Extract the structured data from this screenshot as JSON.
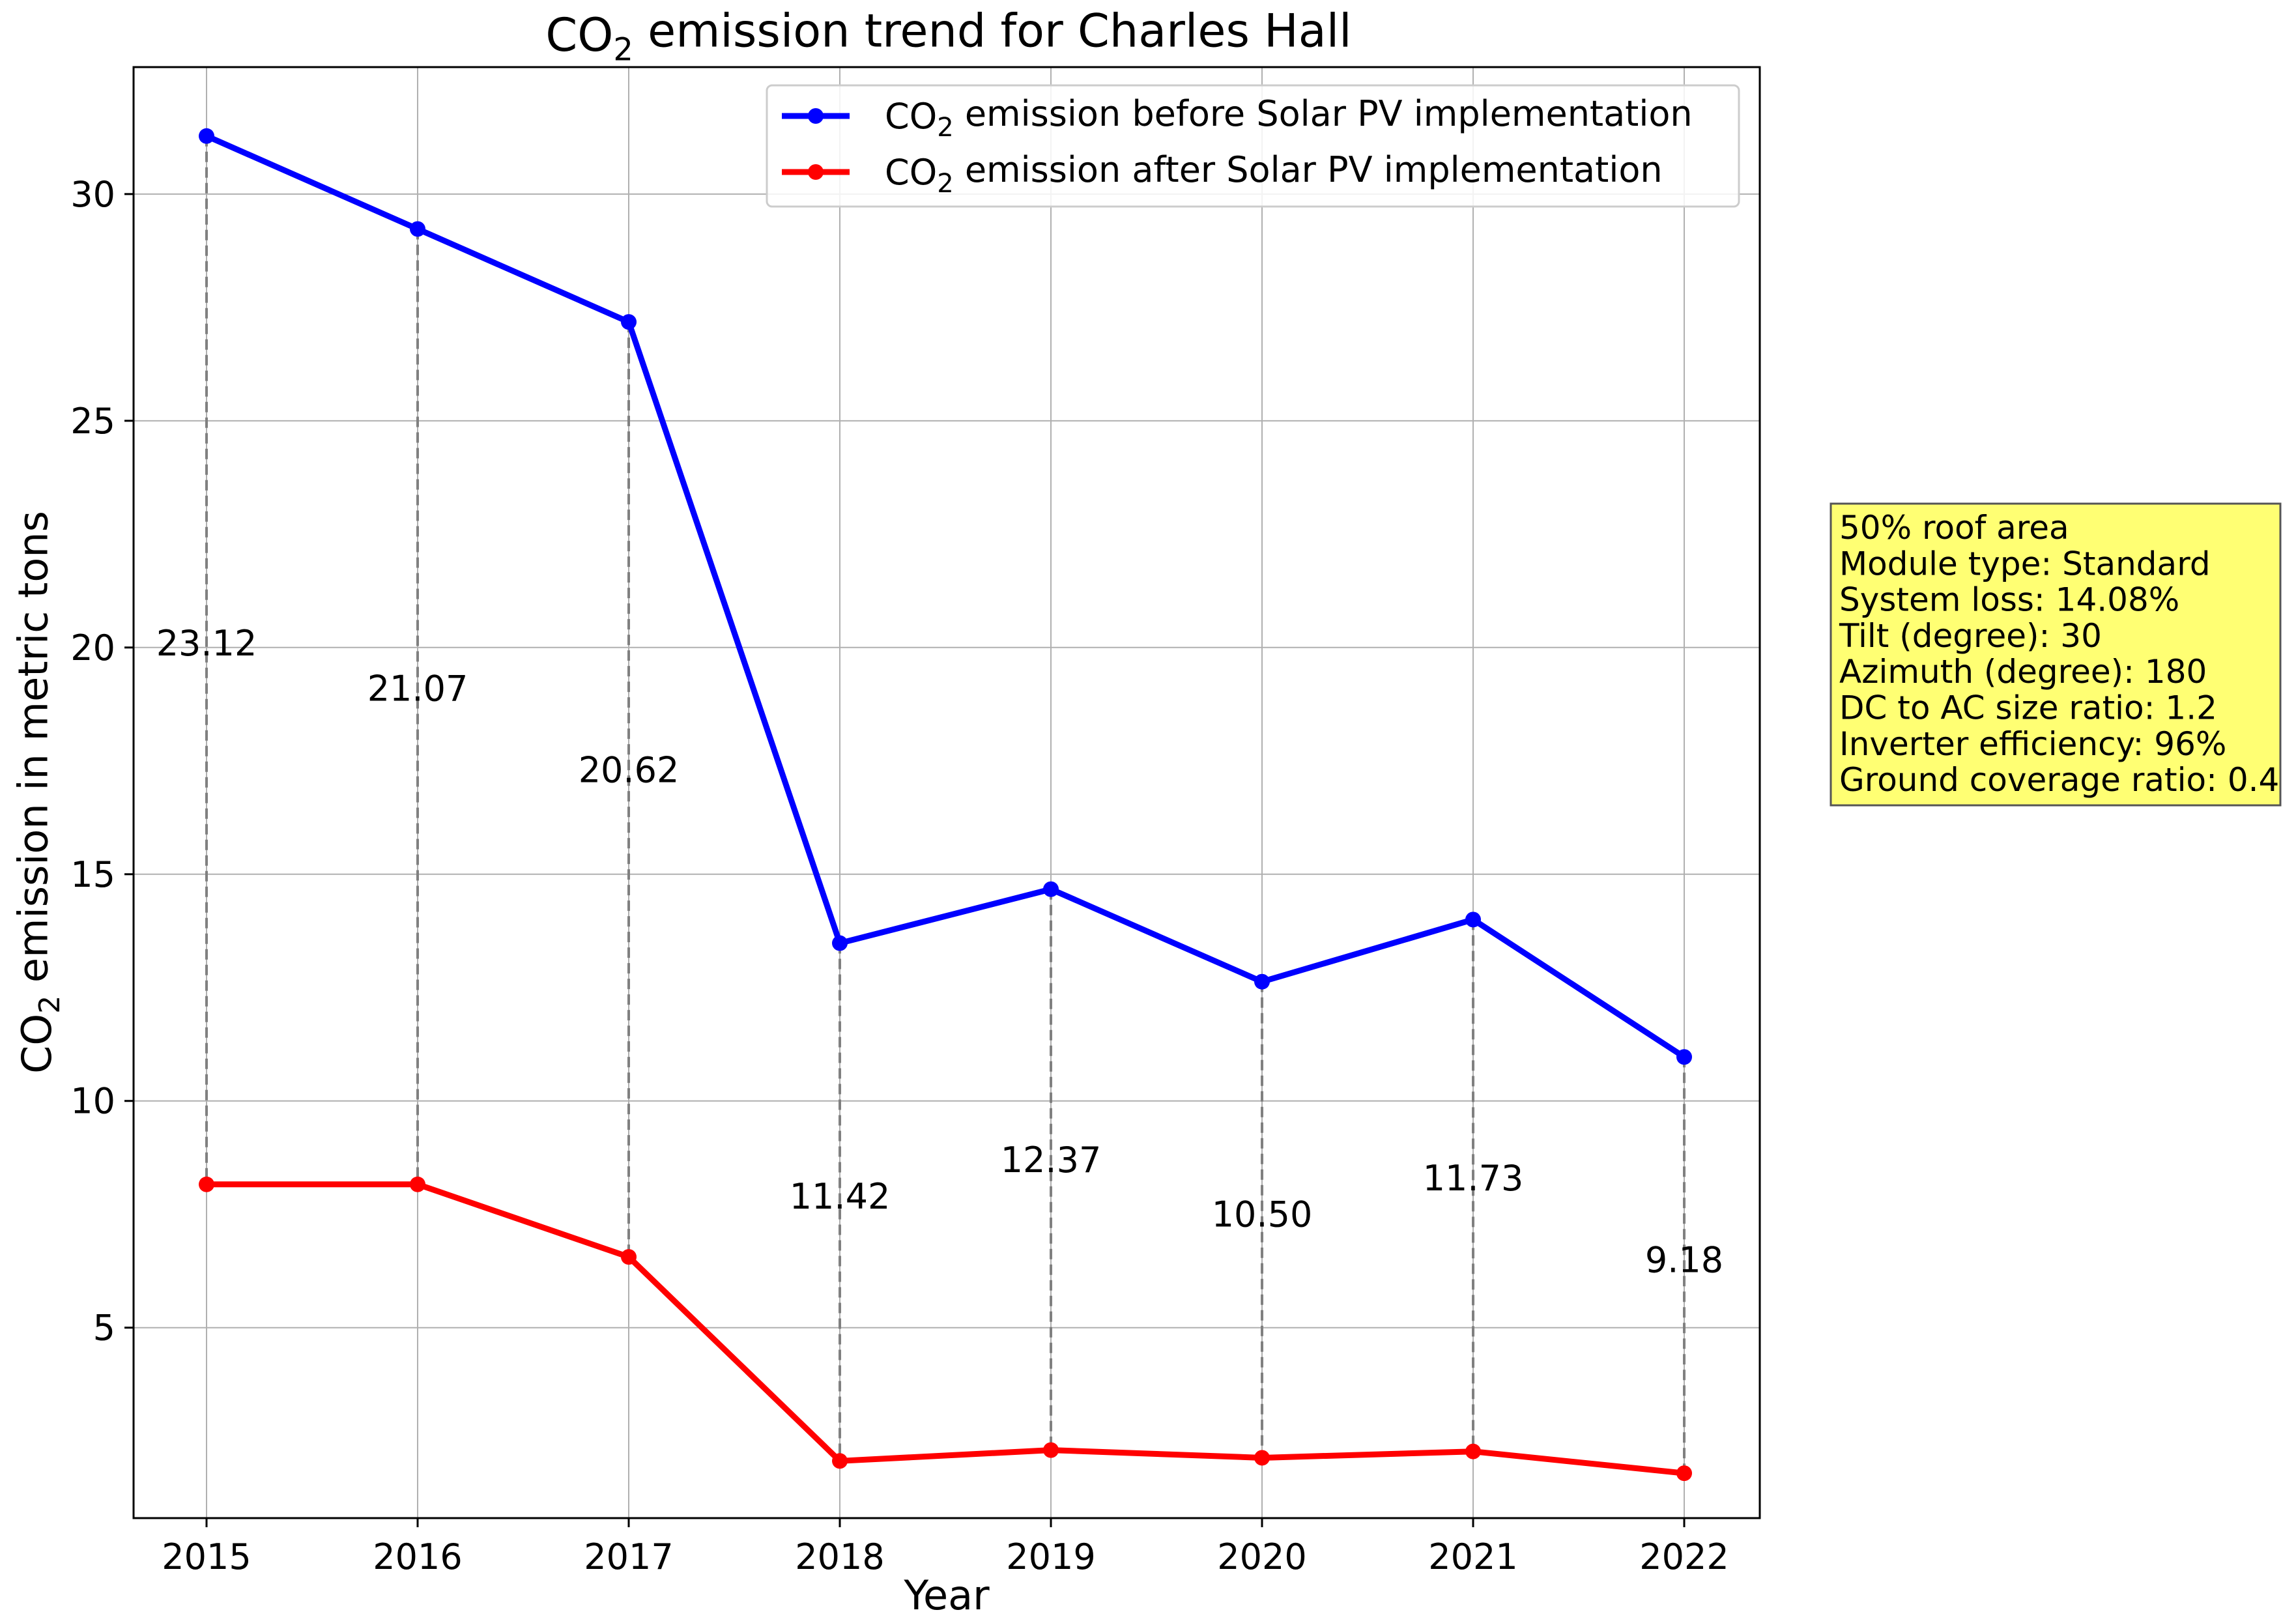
{
  "chart_data": {
    "type": "line",
    "title": {
      "prefix": "CO",
      "subscript": "2",
      "suffix": " emission trend for Charles Hall"
    },
    "xlabel": "Year",
    "ylabel": {
      "prefix": "CO",
      "subscript": "2",
      "suffix": " emission in metric tons"
    },
    "categories": [
      "2015",
      "2016",
      "2017",
      "2018",
      "2019",
      "2020",
      "2021",
      "2022"
    ],
    "ylim": [
      0.8,
      32.8
    ],
    "yticks": [
      5,
      10,
      15,
      20,
      25,
      30
    ],
    "grid": true,
    "legend_position": "top-right",
    "series": [
      {
        "name": "CO2 emission before Solar PV implementation",
        "legend": {
          "prefix": "CO",
          "subscript": "2",
          "suffix": " emission before Solar PV implementation"
        },
        "color": "#0000ff",
        "values": [
          31.28,
          29.23,
          27.18,
          13.48,
          14.67,
          12.63,
          14.0,
          10.97
        ]
      },
      {
        "name": "CO2 emission after Solar PV implementation",
        "legend": {
          "prefix": "CO",
          "subscript": "2",
          "suffix": " emission after Solar PV implementation"
        },
        "color": "#ff0000",
        "values": [
          8.16,
          8.16,
          6.56,
          2.06,
          2.3,
          2.13,
          2.27,
          1.79
        ]
      }
    ],
    "difference_labels": [
      "23.12",
      "21.07",
      "20.62",
      "11.42",
      "12.37",
      "10.50",
      "11.73",
      "9.18"
    ],
    "difference_label_y": [
      20.1,
      19.1,
      17.3,
      7.9,
      8.7,
      7.5,
      8.3,
      6.5
    ],
    "connector_color": "#808080"
  },
  "annotation_box": {
    "background": "#ffff73",
    "lines": [
      "50% roof area",
      "Module type: Standard",
      "System loss: 14.08%",
      "Tilt (degree): 30",
      "Azimuth (degree): 180",
      "DC to AC size ratio: 1.2",
      "Inverter efficiency: 96%",
      "Ground coverage ratio: 0.4"
    ]
  }
}
